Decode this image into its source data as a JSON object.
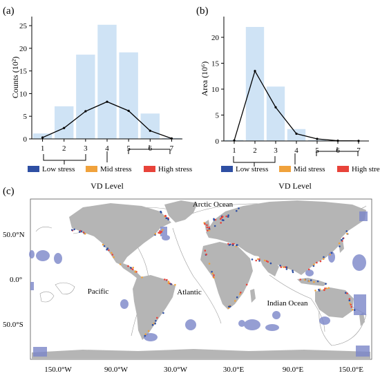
{
  "panels": {
    "a": "(a)",
    "b": "(b)",
    "c": "(c)"
  },
  "legend": {
    "items": [
      {
        "label": "Low stress",
        "color": "#2e4fa3"
      },
      {
        "label": "Mid stress",
        "color": "#f0a23c"
      },
      {
        "label": "High stress",
        "color": "#e8433a"
      }
    ]
  },
  "colors": {
    "bar": "#cfe3f5",
    "line": "#000000",
    "land": "#b5b5b5",
    "protected": "#7b86c9"
  },
  "chart_data": [
    {
      "type": "bar",
      "panel": "(a)",
      "xlabel": "VD Level",
      "ylabel": "Counts (10²)",
      "categories": [
        "1",
        "2",
        "3",
        "4",
        "5",
        "6",
        "7"
      ],
      "values": [
        1.2,
        7.2,
        18.6,
        25.2,
        19.1,
        5.6,
        0.2
      ],
      "overlay_line": [
        0.3,
        2.4,
        6.1,
        8.2,
        6.2,
        1.8,
        0.1
      ],
      "ylim": [
        0,
        27
      ],
      "yticks": [
        "0",
        "5",
        "10",
        "15",
        "20",
        "25"
      ],
      "legend_placement": "bottom",
      "grid": false
    },
    {
      "type": "bar",
      "panel": "(b)",
      "xlabel": "VD Level",
      "ylabel": "Area (10⁶)",
      "categories": [
        "1",
        "2",
        "3",
        "4",
        "5",
        "6",
        "7"
      ],
      "values": [
        0.2,
        22.0,
        10.5,
        2.3,
        0.2,
        0.05,
        0.02
      ],
      "overlay_line": [
        0.1,
        13.5,
        6.5,
        1.4,
        0.4,
        0.05,
        0.02
      ],
      "ylim": [
        0,
        24
      ],
      "yticks": [
        "0",
        "5",
        "10",
        "15",
        "20"
      ],
      "legend_placement": "bottom",
      "grid": false
    }
  ],
  "map": {
    "x_ticks": [
      "150.0°W",
      "90.0°W",
      "30.0°W",
      "30.0°E",
      "90.0°E",
      "150.0°E"
    ],
    "y_ticks": [
      "50.0°N",
      "0.0°",
      "50.0°S"
    ],
    "oceans": [
      "Arctic Ocean",
      "Pacific",
      "Atlantic",
      "Indian Ocean"
    ]
  }
}
